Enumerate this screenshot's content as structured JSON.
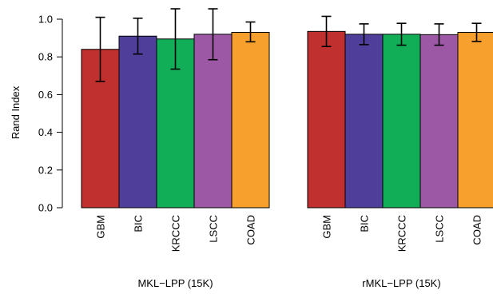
{
  "chart_data": {
    "type": "bar",
    "ylabel": "Rand Index",
    "ylim": [
      0,
      1.0
    ],
    "yticks": [
      0.0,
      0.2,
      0.4,
      0.6,
      0.8,
      1.0
    ],
    "ytick_labels": [
      "0.0",
      "0.2",
      "0.4",
      "0.6",
      "0.8",
      "1.0"
    ],
    "error_bars": true,
    "grid": false,
    "legend": "none",
    "categories": [
      "GBM",
      "BIC",
      "KRCCC",
      "LSCC",
      "COAD"
    ],
    "colors": [
      "#c0302f",
      "#4f3f9b",
      "#12ad57",
      "#9d58a5",
      "#f7a02e"
    ],
    "groups": [
      {
        "label": "MKL−LPP (15K)",
        "values": [
          0.84,
          0.91,
          0.895,
          0.92,
          0.93
        ],
        "err_low": [
          0.67,
          0.815,
          0.735,
          0.785,
          0.88
        ],
        "err_high": [
          1.01,
          1.005,
          1.055,
          1.055,
          0.985
        ]
      },
      {
        "label": "rMKL−LPP (15K)",
        "values": [
          0.935,
          0.92,
          0.92,
          0.918,
          0.93
        ],
        "err_low": [
          0.855,
          0.865,
          0.862,
          0.862,
          0.882
        ],
        "err_high": [
          1.015,
          0.975,
          0.978,
          0.975,
          0.978
        ]
      }
    ]
  }
}
